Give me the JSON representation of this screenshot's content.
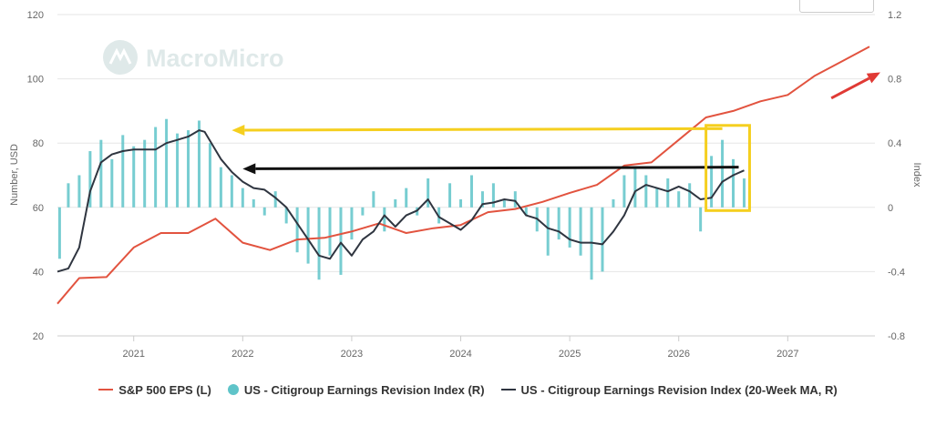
{
  "colors": {
    "eps": "#e2533f",
    "revision_bar": "#5fc4c9",
    "revision_ma": "#2f3540",
    "annot_yellow": "#f5cf1f",
    "annot_black": "#111111",
    "annot_red": "#e03a35"
  },
  "watermark": {
    "text": "MacroMicro",
    "icon": "macromicro-logo-icon"
  },
  "legend": [
    {
      "label": "S&P 500 EPS (L)",
      "symbol": "line",
      "color": "#e2533f"
    },
    {
      "label": "US - Citigroup Earnings Revision Index (R)",
      "symbol": "dot",
      "color": "#5fc4c9"
    },
    {
      "label": "US - Citigroup Earnings Revision Index (20-Week MA, R)",
      "symbol": "line",
      "color": "#2f3540"
    }
  ],
  "chart_data": {
    "type": "line",
    "title": "",
    "grid": true,
    "legend_position": "bottom",
    "x_axis": {
      "ticks": [
        "2021",
        "2022",
        "2023",
        "2024",
        "2025",
        "2026",
        "2027"
      ],
      "range": [
        2020.3,
        2027.8
      ]
    },
    "y_left": {
      "label": "Number, USD",
      "ticks": [
        "20",
        "40",
        "60",
        "80",
        "100",
        "120"
      ],
      "range": [
        20,
        120
      ]
    },
    "y_right": {
      "label": "Index",
      "ticks": [
        "-0.8",
        "-0.4",
        "0",
        "0.4",
        "0.8",
        "1.2"
      ],
      "range": [
        -0.8,
        1.2
      ]
    },
    "series": [
      {
        "name": "S&P 500 EPS (L)",
        "axis": "left",
        "kind": "line",
        "points": [
          [
            2020.3,
            30
          ],
          [
            2020.5,
            38
          ],
          [
            2020.75,
            38.3
          ],
          [
            2021.0,
            47.5
          ],
          [
            2021.25,
            52
          ],
          [
            2021.5,
            52
          ],
          [
            2021.75,
            56.5
          ],
          [
            2022.0,
            49
          ],
          [
            2022.25,
            46.7
          ],
          [
            2022.5,
            50
          ],
          [
            2022.75,
            50.5
          ],
          [
            2023.0,
            52.5
          ],
          [
            2023.25,
            55
          ],
          [
            2023.5,
            52
          ],
          [
            2023.75,
            53.5
          ],
          [
            2024.0,
            54.5
          ],
          [
            2024.25,
            58.5
          ],
          [
            2024.5,
            59.5
          ],
          [
            2024.75,
            61.7
          ],
          [
            2025.0,
            64.5
          ],
          [
            2025.25,
            67
          ],
          [
            2025.5,
            73
          ],
          [
            2025.75,
            74
          ],
          [
            2026.0,
            81
          ],
          [
            2026.25,
            88
          ],
          [
            2026.5,
            90
          ],
          [
            2026.75,
            93
          ],
          [
            2027.0,
            95
          ],
          [
            2027.25,
            101
          ],
          [
            2027.5,
            105.5
          ],
          [
            2027.75,
            110
          ]
        ]
      },
      {
        "name": "US - Citigroup Earnings Revision Index (R)",
        "axis": "right",
        "kind": "bar",
        "points": [
          [
            2020.32,
            -0.32
          ],
          [
            2020.4,
            0.15
          ],
          [
            2020.5,
            0.2
          ],
          [
            2020.6,
            0.35
          ],
          [
            2020.7,
            0.42
          ],
          [
            2020.8,
            0.3
          ],
          [
            2020.9,
            0.45
          ],
          [
            2021.0,
            0.38
          ],
          [
            2021.1,
            0.42
          ],
          [
            2021.2,
            0.5
          ],
          [
            2021.3,
            0.55
          ],
          [
            2021.4,
            0.46
          ],
          [
            2021.5,
            0.48
          ],
          [
            2021.6,
            0.54
          ],
          [
            2021.7,
            0.4
          ],
          [
            2021.8,
            0.25
          ],
          [
            2021.9,
            0.2
          ],
          [
            2022.0,
            0.12
          ],
          [
            2022.1,
            0.05
          ],
          [
            2022.2,
            -0.05
          ],
          [
            2022.3,
            0.1
          ],
          [
            2022.4,
            -0.1
          ],
          [
            2022.5,
            -0.28
          ],
          [
            2022.6,
            -0.35
          ],
          [
            2022.7,
            -0.45
          ],
          [
            2022.8,
            -0.3
          ],
          [
            2022.9,
            -0.42
          ],
          [
            2023.0,
            -0.2
          ],
          [
            2023.1,
            -0.05
          ],
          [
            2023.2,
            0.1
          ],
          [
            2023.3,
            -0.15
          ],
          [
            2023.4,
            0.05
          ],
          [
            2023.5,
            0.12
          ],
          [
            2023.6,
            -0.05
          ],
          [
            2023.7,
            0.18
          ],
          [
            2023.8,
            -0.1
          ],
          [
            2023.9,
            0.15
          ],
          [
            2024.0,
            0.05
          ],
          [
            2024.1,
            0.2
          ],
          [
            2024.2,
            0.1
          ],
          [
            2024.3,
            0.15
          ],
          [
            2024.4,
            0.05
          ],
          [
            2024.5,
            0.1
          ],
          [
            2024.6,
            -0.05
          ],
          [
            2024.7,
            -0.15
          ],
          [
            2024.8,
            -0.3
          ],
          [
            2024.9,
            -0.2
          ],
          [
            2025.0,
            -0.25
          ],
          [
            2025.1,
            -0.3
          ],
          [
            2025.2,
            -0.45
          ],
          [
            2025.3,
            -0.4
          ],
          [
            2025.4,
            0.05
          ],
          [
            2025.5,
            0.2
          ],
          [
            2025.6,
            0.25
          ],
          [
            2025.7,
            0.2
          ],
          [
            2025.8,
            0.12
          ],
          [
            2025.9,
            0.18
          ],
          [
            2026.0,
            0.1
          ],
          [
            2026.1,
            0.15
          ],
          [
            2026.2,
            -0.15
          ],
          [
            2026.3,
            0.32
          ],
          [
            2026.4,
            0.42
          ],
          [
            2026.5,
            0.3
          ],
          [
            2026.6,
            0.18
          ],
          [
            2026.65,
            0.1
          ]
        ]
      },
      {
        "name": "US - Citigroup Earnings Revision Index (20-Week MA, R)",
        "axis": "right",
        "kind": "line",
        "points": [
          [
            2020.3,
            -0.4
          ],
          [
            2020.4,
            -0.38
          ],
          [
            2020.5,
            -0.25
          ],
          [
            2020.6,
            0.1
          ],
          [
            2020.7,
            0.28
          ],
          [
            2020.8,
            0.33
          ],
          [
            2020.9,
            0.35
          ],
          [
            2021.0,
            0.36
          ],
          [
            2021.2,
            0.36
          ],
          [
            2021.3,
            0.4
          ],
          [
            2021.4,
            0.42
          ],
          [
            2021.5,
            0.44
          ],
          [
            2021.6,
            0.48
          ],
          [
            2021.65,
            0.47
          ],
          [
            2021.8,
            0.3
          ],
          [
            2021.9,
            0.22
          ],
          [
            2022.0,
            0.16
          ],
          [
            2022.1,
            0.12
          ],
          [
            2022.2,
            0.11
          ],
          [
            2022.3,
            0.06
          ],
          [
            2022.4,
            0.0
          ],
          [
            2022.5,
            -0.1
          ],
          [
            2022.6,
            -0.2
          ],
          [
            2022.7,
            -0.3
          ],
          [
            2022.8,
            -0.32
          ],
          [
            2022.9,
            -0.22
          ],
          [
            2023.0,
            -0.3
          ],
          [
            2023.1,
            -0.2
          ],
          [
            2023.2,
            -0.15
          ],
          [
            2023.3,
            -0.05
          ],
          [
            2023.4,
            -0.12
          ],
          [
            2023.5,
            -0.05
          ],
          [
            2023.6,
            -0.02
          ],
          [
            2023.7,
            0.05
          ],
          [
            2023.8,
            -0.06
          ],
          [
            2023.9,
            -0.1
          ],
          [
            2024.0,
            -0.14
          ],
          [
            2024.1,
            -0.08
          ],
          [
            2024.2,
            0.02
          ],
          [
            2024.3,
            0.03
          ],
          [
            2024.4,
            0.05
          ],
          [
            2024.5,
            0.04
          ],
          [
            2024.6,
            -0.05
          ],
          [
            2024.7,
            -0.07
          ],
          [
            2024.8,
            -0.13
          ],
          [
            2024.9,
            -0.15
          ],
          [
            2025.0,
            -0.2
          ],
          [
            2025.1,
            -0.22
          ],
          [
            2025.2,
            -0.22
          ],
          [
            2025.3,
            -0.23
          ],
          [
            2025.4,
            -0.15
          ],
          [
            2025.5,
            -0.05
          ],
          [
            2025.6,
            0.1
          ],
          [
            2025.7,
            0.14
          ],
          [
            2025.8,
            0.12
          ],
          [
            2025.9,
            0.1
          ],
          [
            2026.0,
            0.13
          ],
          [
            2026.1,
            0.1
          ],
          [
            2026.2,
            0.05
          ],
          [
            2026.3,
            0.06
          ],
          [
            2026.4,
            0.16
          ],
          [
            2026.5,
            0.2
          ],
          [
            2026.6,
            0.23
          ]
        ]
      }
    ],
    "annotations": [
      {
        "kind": "arrow",
        "color": "yellow",
        "from": [
          2026.4,
          84.5
        ],
        "to": [
          2021.9,
          84
        ]
      },
      {
        "kind": "arrow",
        "color": "black",
        "from": [
          2026.55,
          72.5
        ],
        "to": [
          2022.0,
          72
        ]
      },
      {
        "kind": "box",
        "color": "yellow",
        "from": [
          2026.25,
          85.5
        ],
        "to": [
          2026.65,
          59
        ]
      },
      {
        "kind": "arrow",
        "color": "red",
        "from": [
          2027.4,
          94
        ],
        "to": [
          2027.85,
          102
        ]
      }
    ]
  }
}
